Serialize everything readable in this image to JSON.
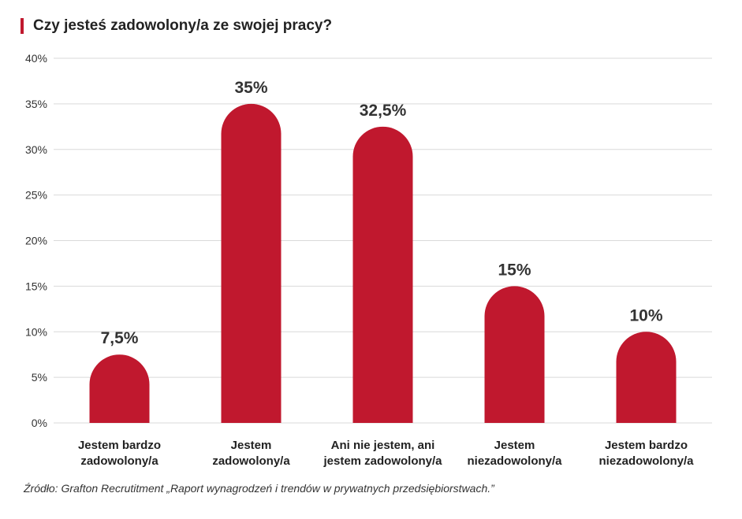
{
  "chart_data": {
    "type": "bar",
    "title": "Czy jesteś zadowolony/a ze swojej pracy?",
    "categories": [
      [
        "Jestem bardzo",
        "zadowolony/a"
      ],
      [
        "Jestem",
        "zadowolony/a"
      ],
      [
        "Ani nie jestem, ani",
        "jestem zadowolony/a"
      ],
      [
        "Jestem",
        "niezadowolony/a"
      ],
      [
        "Jestem bardzo",
        "niezadowolony/a"
      ]
    ],
    "values": [
      7.5,
      35,
      32.5,
      15,
      10
    ],
    "data_labels": [
      "7,5%",
      "35%",
      "32,5%",
      "15%",
      "10%"
    ],
    "ylim": [
      0,
      40
    ],
    "yticks": [
      0,
      5,
      10,
      15,
      20,
      25,
      30,
      35,
      40
    ],
    "ytick_labels": [
      "0%",
      "5%",
      "10%",
      "15%",
      "20%",
      "25%",
      "30%",
      "35%",
      "40%"
    ],
    "grid": true,
    "colors": {
      "bar": "#c0182e",
      "grid": "#d9d9d9",
      "text": "#333333"
    }
  },
  "source": "Źródło: Grafton Recrutitment „Raport wynagrodzeń i trendów w prywatnych przedsiębiorstwach.”"
}
